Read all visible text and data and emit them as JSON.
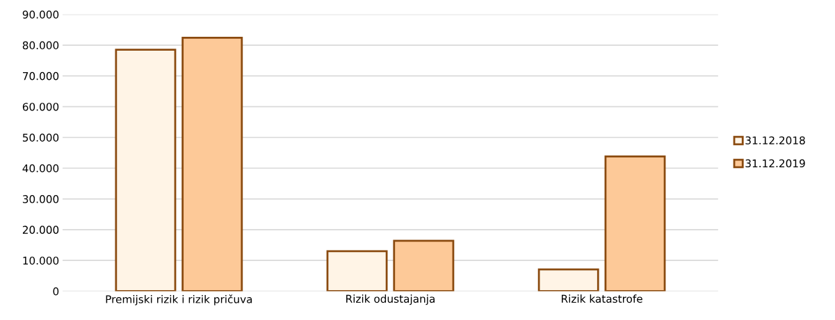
{
  "chart_data": {
    "type": "bar",
    "categories": [
      "Premijski rizik i rizik pričuva",
      "Rizik odustajanja",
      "Rizik katastrofe"
    ],
    "series": [
      {
        "name": "31.12.2018",
        "color": "#fff4e6",
        "values": [
          78500,
          13000,
          7100
        ]
      },
      {
        "name": "31.12.2019",
        "color": "#fdc998",
        "values": [
          82400,
          16400,
          43800
        ]
      }
    ],
    "ylim": [
      0,
      90000
    ],
    "yticks": [
      {
        "value": 0,
        "label": "0"
      },
      {
        "value": 10000,
        "label": "10.000"
      },
      {
        "value": 20000,
        "label": "20.000"
      },
      {
        "value": 30000,
        "label": "30.000"
      },
      {
        "value": 40000,
        "label": "40.000"
      },
      {
        "value": 50000,
        "label": "50.000"
      },
      {
        "value": 60000,
        "label": "60.000"
      },
      {
        "value": 70000,
        "label": "70.000"
      },
      {
        "value": 80000,
        "label": "80.000"
      },
      {
        "value": 90000,
        "label": "90.000"
      }
    ],
    "grid": "y",
    "legend": "right"
  }
}
